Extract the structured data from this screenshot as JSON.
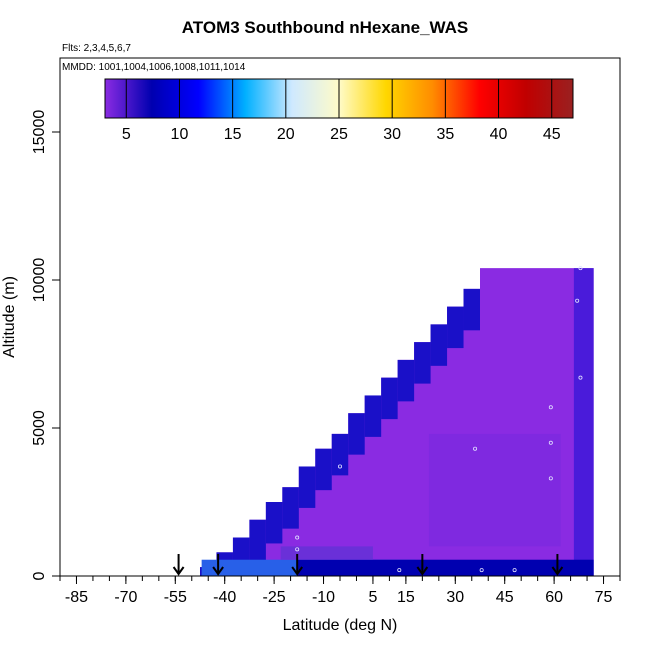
{
  "title": "ATOM3 Southbound nHexane_WAS",
  "flights_note": "Flts: 2,3,4,5,6,7",
  "dates_note": "MMDD: 1001,1004,1006,1008,1011,1014",
  "chart_data": {
    "type": "heatmap",
    "title": "ATOM3 Southbound nHexane_WAS",
    "xlabel": "Latitude (deg N)",
    "ylabel": "Altitude (m)",
    "xlim": [
      -90,
      80
    ],
    "ylim": [
      0,
      17500
    ],
    "x_tick_labels": [
      "-85",
      "-70",
      "-55",
      "-40",
      "-25",
      "-10",
      "5",
      "15",
      "30",
      "45",
      "60",
      "75"
    ],
    "x_tick_values": [
      -85,
      -70,
      -55,
      -40,
      -25,
      -10,
      5,
      15,
      30,
      45,
      60,
      75
    ],
    "y_tick_labels": [
      "0",
      "5000",
      "10000",
      "15000"
    ],
    "y_tick_values": [
      0,
      5000,
      10000,
      15000
    ],
    "colorbar": {
      "range": [
        3,
        47
      ],
      "tick_labels": [
        "5",
        "10",
        "15",
        "20",
        "25",
        "30",
        "35",
        "40",
        "45"
      ],
      "tick_values": [
        5,
        10,
        15,
        20,
        25,
        30,
        35,
        40,
        45
      ],
      "colors": [
        "#8a2be2",
        "#0000b0",
        "#0000ff",
        "#00b0ff",
        "#cfe9ff",
        "#fffbc8",
        "#ffd700",
        "#ff8c00",
        "#ff0000",
        "#c00000",
        "#9a2020"
      ]
    },
    "coverage_profile": {
      "latitude": [
        -45,
        -40,
        -35,
        -30,
        -25,
        -20,
        -15,
        -10,
        -5,
        0,
        5,
        10,
        15,
        20,
        25,
        30,
        35,
        40,
        45,
        50,
        55,
        60,
        65,
        70
      ],
      "max_altitude": [
        300,
        800,
        1300,
        1900,
        2500,
        3000,
        3700,
        4300,
        4800,
        5500,
        6100,
        6700,
        7300,
        7900,
        8500,
        9100,
        9700,
        10400,
        10400,
        10400,
        10400,
        10400,
        10400,
        10400
      ]
    },
    "sample_arrows_latitude": [
      -54,
      -42,
      -18,
      20,
      61
    ]
  }
}
